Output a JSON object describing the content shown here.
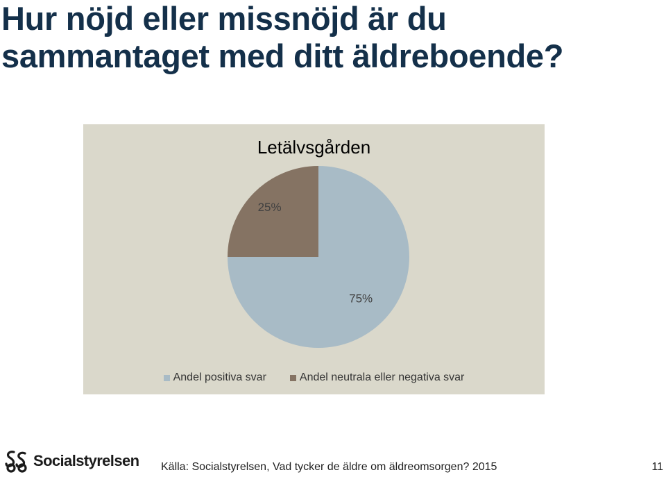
{
  "slide": {
    "title_line1": "Hur nöjd eller missnöjd är du",
    "title_line2": "sammantaget med ditt äldreboende?"
  },
  "chart_data": {
    "type": "pie",
    "title": "Letälvsgården",
    "categories": [
      "Andel positiva svar",
      "Andel neutrala eller negativa svar"
    ],
    "values": [
      75,
      25
    ],
    "labels": [
      "75%",
      "25%"
    ],
    "colors": [
      "#a8bbc6",
      "#857363"
    ],
    "legend_position": "bottom"
  },
  "footer": {
    "logo_text": "Socialstyrelsen",
    "source": "Källa: Socialstyrelsen, Vad tycker de äldre om äldreomsorgen? 2015",
    "page_number": "11"
  },
  "colors": {
    "title": "#14304a",
    "chart_background": "#dad8cb"
  }
}
